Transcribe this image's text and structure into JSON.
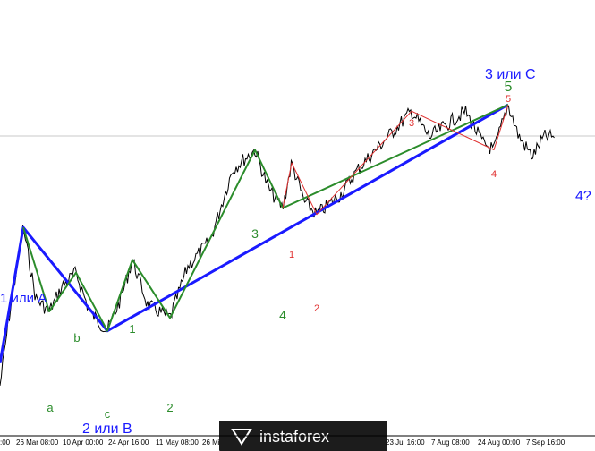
{
  "chart_data": {
    "type": "line",
    "title": "",
    "x_ticks": [
      "26 Mar 08:00",
      "10 Apr 00:00",
      "24 Apr 16:00",
      "11 May 08:00",
      "26 Mi",
      "23 Jul 16:00",
      "7 Aug 08:00",
      "24 Aug 00:00",
      "7 Sep 16:00"
    ],
    "x_tick_prefix": ":00",
    "price_line": {
      "label": "current price level"
    },
    "series": [
      {
        "name": "blue wave count",
        "color": "#1a1aff",
        "points": [
          [
            0,
            0.2
          ],
          [
            26,
            0.62
          ],
          [
            120,
            0.3
          ],
          [
            568,
            1.0
          ]
        ]
      },
      {
        "name": "green wave count",
        "color": "#2b8c2b",
        "points": [
          [
            26,
            0.62
          ],
          [
            55,
            0.36
          ],
          [
            85,
            0.48
          ],
          [
            120,
            0.3
          ],
          [
            148,
            0.52
          ],
          [
            190,
            0.34
          ],
          [
            285,
            0.86
          ],
          [
            316,
            0.68
          ],
          [
            568,
            1.0
          ]
        ]
      },
      {
        "name": "red wave count",
        "color": "#e03030",
        "points": [
          [
            316,
            0.68
          ],
          [
            326,
            0.82
          ],
          [
            354,
            0.66
          ],
          [
            460,
            0.98
          ],
          [
            552,
            0.86
          ],
          [
            568,
            1.0
          ]
        ]
      }
    ],
    "wave_labels": [
      {
        "text": "1 или A",
        "color": "#1a1aff"
      },
      {
        "text": "2 или B",
        "color": "#1a1aff"
      },
      {
        "text": "3 или C",
        "color": "#1a1aff"
      },
      {
        "text": "4?",
        "color": "#1a1aff"
      },
      {
        "text": "a",
        "color": "#2b8c2b"
      },
      {
        "text": "b",
        "color": "#2b8c2b"
      },
      {
        "text": "c",
        "color": "#2b8c2b"
      },
      {
        "text": "1",
        "color": "#2b8c2b"
      },
      {
        "text": "2",
        "color": "#2b8c2b"
      },
      {
        "text": "3",
        "color": "#2b8c2b"
      },
      {
        "text": "4",
        "color": "#2b8c2b"
      },
      {
        "text": "5",
        "color": "#2b8c2b"
      },
      {
        "text": "1",
        "color": "#e03030"
      },
      {
        "text": "2",
        "color": "#e03030"
      },
      {
        "text": "3",
        "color": "#e03030"
      },
      {
        "text": "4",
        "color": "#e03030"
      },
      {
        "text": "5",
        "color": "#e03030"
      }
    ]
  },
  "watermark": {
    "brand": "instaforex",
    "bg_color": "#1c1c1c"
  }
}
